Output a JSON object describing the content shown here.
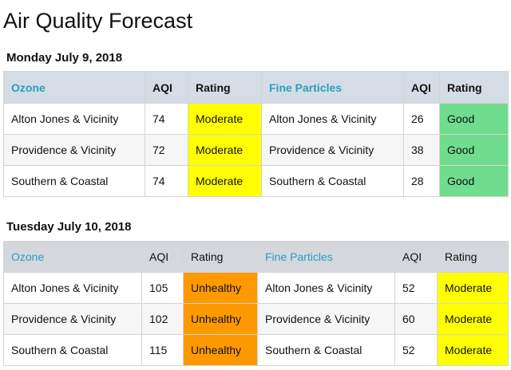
{
  "page_title": "Air Quality Forecast",
  "colors": {
    "group_header_text": "#2c9dc4",
    "header_bg": "#d4dde5",
    "moderate": "#ffff00",
    "good": "#6fdc8e",
    "unhealthy": "#ff9900",
    "border": "#d4d4d4"
  },
  "days": [
    {
      "heading": "Monday July 9, 2018",
      "headers": {
        "ozone": "Ozone",
        "aqi1": "AQI",
        "rating1": "Rating",
        "fine": "Fine Particles",
        "aqi2": "AQI",
        "rating2": "Rating"
      },
      "rows": [
        {
          "region1": "Alton Jones & Vicinity",
          "aqi1": "74",
          "rating1": "Moderate",
          "region2": "Alton Jones & Vicinity",
          "aqi2": "26",
          "rating2": "Good"
        },
        {
          "region1": "Providence & Vicinity",
          "aqi1": "72",
          "rating1": "Moderate",
          "region2": "Providence & Vicinity",
          "aqi2": "38",
          "rating2": "Good"
        },
        {
          "region1": "Southern & Coastal",
          "aqi1": "74",
          "rating1": "Moderate",
          "region2": "Southern & Coastal",
          "aqi2": "28",
          "rating2": "Good"
        }
      ]
    },
    {
      "heading": "Tuesday July 10, 2018",
      "headers": {
        "ozone": "Ozone",
        "aqi1": "AQI",
        "rating1": "Rating",
        "fine": "Fine Particles",
        "aqi2": "AQI",
        "rating2": "Rating"
      },
      "rows": [
        {
          "region1": "Alton Jones & Vicinity",
          "aqi1": "105",
          "rating1": "Unhealthy",
          "region2": "Alton Jones & Vicinity",
          "aqi2": "52",
          "rating2": "Moderate"
        },
        {
          "region1": "Providence & Vicinity",
          "aqi1": "102",
          "rating1": "Unhealthy",
          "region2": "Providence & Vicinity",
          "aqi2": "60",
          "rating2": "Moderate"
        },
        {
          "region1": "Southern & Coastal",
          "aqi1": "115",
          "rating1": "Unhealthy",
          "region2": "Southern & Coastal",
          "aqi2": "52",
          "rating2": "Moderate"
        }
      ]
    }
  ]
}
